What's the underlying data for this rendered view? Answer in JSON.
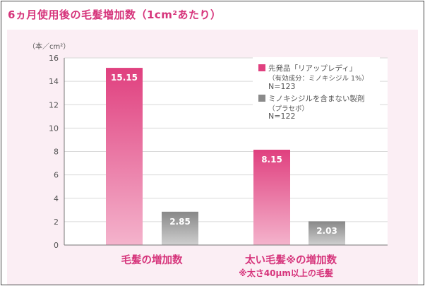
{
  "title": "6ヵ月使用後の毛髪増加数（1cm²あたり）",
  "chart_data": {
    "type": "bar",
    "unit_label": "（本／cm²）",
    "ylim": [
      0,
      16
    ],
    "yticks": [
      0,
      2,
      4,
      6,
      8,
      10,
      12,
      14,
      16
    ],
    "categories": [
      "毛髪の増加数",
      "太い毛髪※の増加数"
    ],
    "category_note": "※太さ40μm以上の毛髪",
    "series": [
      {
        "name": "先発品「リアップレディ」",
        "detail": "（有効成分：ミノキシジル 1%）",
        "n": "N=123",
        "color": "#e0407f",
        "values": [
          15.15,
          8.15
        ],
        "value_labels": [
          "15.15",
          "8.15"
        ]
      },
      {
        "name": "ミノキシジルを含まない製剤",
        "detail": "（プラセボ）",
        "n": "N=122",
        "color": "#8a8a8a",
        "values": [
          2.85,
          2.03
        ],
        "value_labels": [
          "2.85",
          "2.03"
        ]
      }
    ]
  }
}
